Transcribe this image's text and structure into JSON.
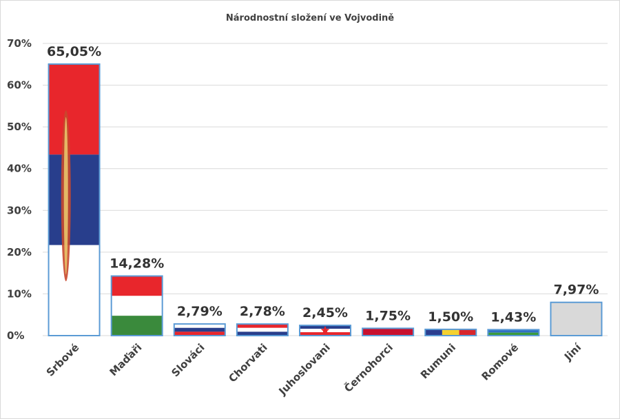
{
  "chart_data": {
    "type": "bar",
    "title": "Národnostní složení ve Vojvodině",
    "xlabel": "",
    "ylabel": "",
    "ylim": [
      0,
      70
    ],
    "yticks": [
      "0%",
      "10%",
      "20%",
      "30%",
      "40%",
      "50%",
      "60%",
      "70%"
    ],
    "grid": true,
    "categories": [
      "Srbové",
      "Maďaři",
      "Slováci",
      "Chorvati",
      "Juhoslovani",
      "Černohorci",
      "Rumuni",
      "Romové",
      "Jiní"
    ],
    "values": [
      65.05,
      14.28,
      2.79,
      2.78,
      2.45,
      1.75,
      1.5,
      1.43,
      7.97
    ],
    "labels": [
      "65,05%",
      "14,28%",
      "2,79%",
      "2,78%",
      "2,45%",
      "1,75%",
      "1,50%",
      "1,43%",
      "7,97%"
    ],
    "fills": [
      {
        "flag": "serbia",
        "stripes": [
          "#e8262c",
          "#283e8c",
          "#ffffff"
        ]
      },
      {
        "flag": "hungary",
        "stripes": [
          "#e8262c",
          "#ffffff",
          "#3a8a3c"
        ]
      },
      {
        "flag": "slovakia",
        "stripes": [
          "#ffffff",
          "#283e8c",
          "#e8262c"
        ]
      },
      {
        "flag": "croatia",
        "stripes": [
          "#e8262c",
          "#ffffff",
          "#283e8c"
        ]
      },
      {
        "flag": "yugoslavia",
        "stripes": [
          "#283e8c",
          "#ffffff",
          "#e8262c"
        ]
      },
      {
        "flag": "montenegro",
        "stripes": [
          "#c8102e"
        ]
      },
      {
        "flag": "romania",
        "stripes": [
          "#2b3d8f",
          "#f5d130",
          "#d8262c"
        ],
        "vertical": true
      },
      {
        "flag": "roma",
        "stripes": [
          "#2f6fc4",
          "#3a9a3c"
        ]
      },
      {
        "flag": "other",
        "stripes": [
          "#d9d9d9"
        ]
      }
    ],
    "bar_outline": "#5b9bd5"
  }
}
